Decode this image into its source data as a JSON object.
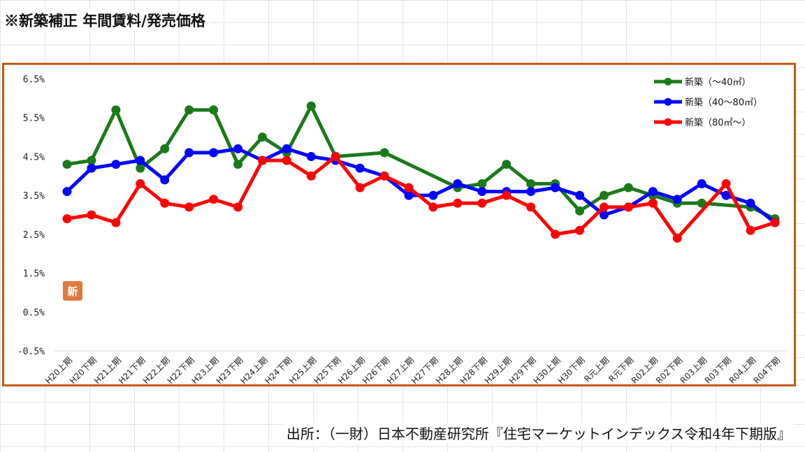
{
  "heading": "※新築補正 年間賃料/発売価格",
  "source": "出所：（一財）日本不動産研究所『住宅マーケットインデックス令和4年下期版』",
  "badge": {
    "text": "新",
    "color": "#e07a3a"
  },
  "colors": {
    "frame": "#c55a11"
  },
  "chart_data": {
    "type": "line",
    "title": "",
    "xlabel": "",
    "ylabel": "",
    "ylim": [
      -0.5,
      6.5
    ],
    "yticks": [
      "6.5%",
      "5.5%",
      "4.5%",
      "3.5%",
      "2.5%",
      "1.5%",
      "0.5%",
      "-0.5%"
    ],
    "grid": false,
    "legend_position": "top-right",
    "categories": [
      "H20上期",
      "H20下期",
      "H21上期",
      "H21下期",
      "H22上期",
      "H22下期",
      "H23上期",
      "H23下期",
      "H24上期",
      "H24下期",
      "H25上期",
      "H25下期",
      "H26上期",
      "H26下期",
      "H27上期",
      "H27下期",
      "H28上期",
      "H28下期",
      "H29上期",
      "H29下期",
      "H30上期",
      "H30下期",
      "R元上期",
      "R元下期",
      "R02上期",
      "R02下期",
      "R03上期",
      "R03下期",
      "R04上期",
      "R04下期"
    ],
    "series": [
      {
        "name": "新築（～40㎡）",
        "color": "#1a7a1a",
        "values": [
          4.3,
          4.4,
          5.7,
          4.2,
          4.7,
          5.7,
          5.7,
          4.3,
          5.0,
          4.6,
          5.8,
          4.5,
          null,
          4.6,
          null,
          null,
          3.7,
          3.8,
          4.3,
          3.8,
          3.8,
          3.1,
          3.5,
          3.7,
          3.5,
          3.3,
          3.3,
          null,
          3.2,
          2.9
        ]
      },
      {
        "name": "新築（40～80㎡）",
        "color": "#0000ff",
        "values": [
          3.6,
          4.2,
          4.3,
          4.4,
          3.9,
          4.6,
          4.6,
          4.7,
          4.4,
          4.7,
          4.5,
          4.4,
          4.2,
          4.0,
          3.5,
          3.5,
          3.8,
          3.6,
          3.6,
          3.6,
          3.7,
          3.5,
          3.0,
          3.2,
          3.6,
          3.4,
          3.8,
          3.5,
          3.3,
          2.8
        ]
      },
      {
        "name": "新築（80㎡～）",
        "color": "#ff0000",
        "values": [
          2.9,
          3.0,
          2.8,
          3.8,
          3.3,
          3.2,
          3.4,
          3.2,
          4.4,
          4.4,
          4.0,
          4.5,
          3.7,
          4.0,
          3.7,
          3.2,
          3.3,
          3.3,
          3.5,
          3.2,
          2.5,
          2.6,
          3.2,
          3.2,
          3.3,
          2.4,
          null,
          3.8,
          2.6,
          2.8
        ]
      }
    ]
  }
}
